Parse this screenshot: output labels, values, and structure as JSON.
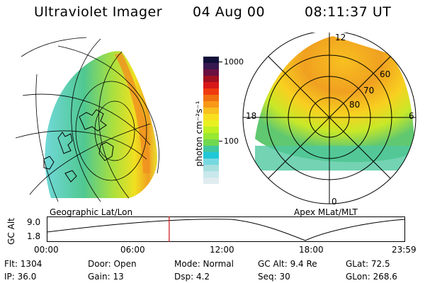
{
  "header": {
    "title": "Ultraviolet Imager",
    "date": "04 Aug 00",
    "time": "08:11:37 UT"
  },
  "left_panel": {
    "caption": "Geographic Lat/Lon"
  },
  "right_panel": {
    "caption": "Apex MLat/MLT",
    "lat_labels": [
      "60",
      "70",
      "80"
    ],
    "mlt_labels": {
      "top": "12",
      "left": "18",
      "right": "6",
      "bottom": "0"
    }
  },
  "colorbar": {
    "axis_label": "photon cm⁻²s⁻¹",
    "ticks": [
      "1000",
      "100"
    ],
    "colors": [
      "#101038",
      "#381850",
      "#6a1040",
      "#a01020",
      "#d81818",
      "#f03a10",
      "#f07010",
      "#f89818",
      "#f8c020",
      "#f8e020",
      "#e8f020",
      "#c0f020",
      "#98e830",
      "#70d850",
      "#40c8a0",
      "#20c8d8",
      "#78d8e0",
      "#a8e0e0",
      "#c8e8ec",
      "#e0ecf0"
    ]
  },
  "alt_plot": {
    "y_label": "GC Alt",
    "y_ticks": [
      "9.0",
      "1.8"
    ],
    "x_ticks": [
      "00:00",
      "06:00",
      "12:00",
      "18:00",
      "23:59"
    ],
    "current_time_fraction": 0.3416
  },
  "info": {
    "flt": "Flt: 1304",
    "door": "Door: Open",
    "mode": "Mode: Normal",
    "gc_alt": "GC Alt: 9.4 Re",
    "glat": "GLat:  72.5",
    "ip": "IP: 36.0",
    "gain": "Gain: 13",
    "dsp": "Dsp:    4.2",
    "seq": "Seq: 30",
    "glon": "GLon: 268.6"
  }
}
